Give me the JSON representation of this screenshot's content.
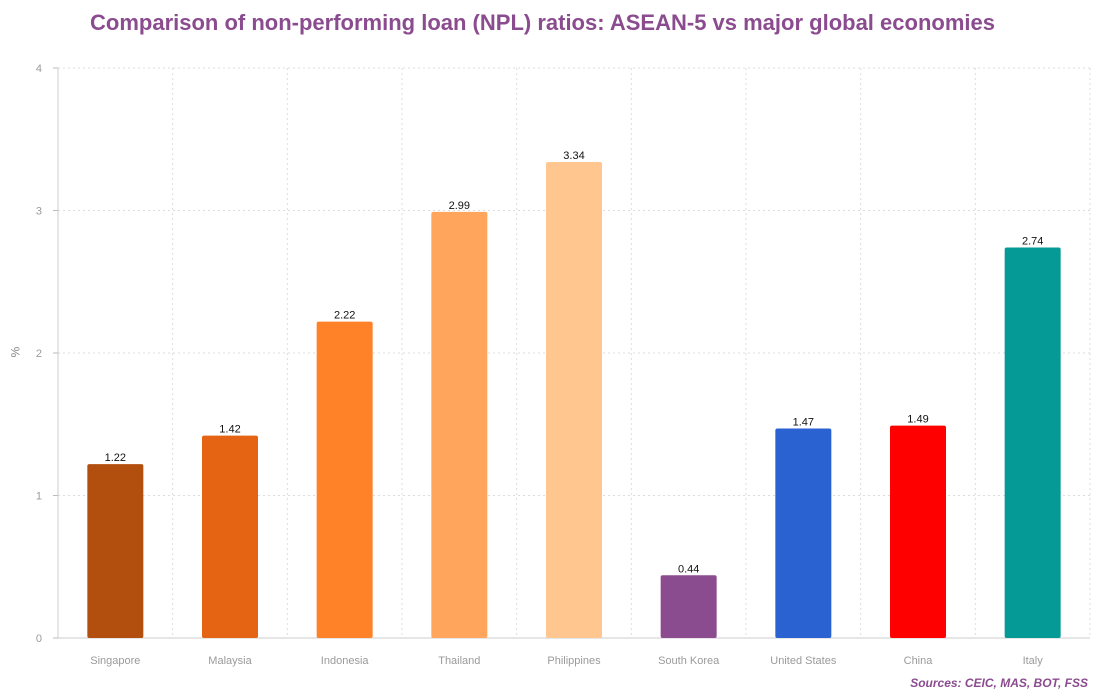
{
  "chart_data": {
    "type": "bar",
    "title": "Comparison of non-performing loan (NPL) ratios: ASEAN-5 vs major global economies",
    "ylabel": "%",
    "xlabel": "",
    "ylim": [
      0,
      4
    ],
    "yticks": [
      0,
      1,
      2,
      3,
      4
    ],
    "grid": true,
    "categories": [
      "Singapore",
      "Malaysia",
      "Indonesia",
      "Thailand",
      "Philippines",
      "South Korea",
      "United States",
      "China",
      "Italy"
    ],
    "values": [
      1.22,
      1.42,
      2.22,
      2.99,
      3.34,
      0.44,
      1.47,
      1.49,
      2.74
    ],
    "data_labels": [
      "1.22",
      "1.42",
      "2.22",
      "2.99",
      "3.34",
      "0.44",
      "1.47",
      "1.49",
      "2.74"
    ],
    "colors": [
      "#b24e0e",
      "#e46413",
      "#ff8229",
      "#ffa55c",
      "#ffc78f",
      "#8b4c8f",
      "#2b62d2",
      "#ff0000",
      "#069a96"
    ]
  },
  "source": "Sources: CEIC, MAS, BOT, FSS"
}
